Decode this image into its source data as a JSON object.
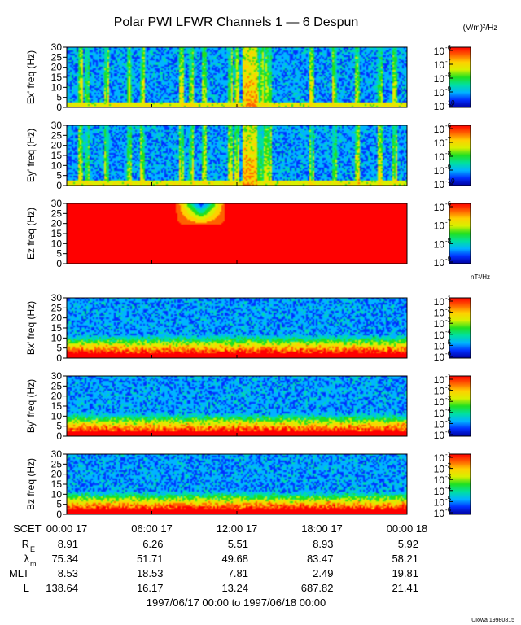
{
  "title": "Polar PWI LFWR Channels 1 — 6 Despun",
  "units": {
    "electric": "(V/m)²/Hz",
    "magnetic": "nT²/Hz"
  },
  "footer": {
    "range": "1997/06/17 00:00 to 1997/06/18 00:00",
    "credit": "UIowa 19980815"
  },
  "time_axis": {
    "label": "SCET",
    "ticks": [
      "00:00 17",
      "06:00 17",
      "12:00 17",
      "18:00 17",
      "00:00 18"
    ],
    "rows": [
      {
        "label": "R",
        "sub": "E",
        "values": [
          "8.91",
          "6.26",
          "5.51",
          "8.93",
          "5.92"
        ]
      },
      {
        "label": "λ",
        "sub": "m",
        "values": [
          "75.34",
          "51.71",
          "49.68",
          "83.47",
          "58.21"
        ]
      },
      {
        "label": "MLT",
        "sub": "",
        "values": [
          "8.53",
          "18.53",
          "7.81",
          "2.49",
          "19.81"
        ]
      },
      {
        "label": "L",
        "sub": "",
        "values": [
          "138.64",
          "16.17",
          "13.24",
          "687.82",
          "21.41"
        ]
      }
    ]
  },
  "colors": {
    "scale": [
      "#0000a0",
      "#0030ff",
      "#00b4ff",
      "#00e0a0",
      "#20e020",
      "#d8f000",
      "#ffd000",
      "#ff6000",
      "#ff0000"
    ]
  },
  "chart_data": [
    {
      "type": "heatmap",
      "channel": "Ex'",
      "ylabel": "Ex' freq (Hz)",
      "ylim": [
        0,
        30
      ],
      "yticks": [
        "0",
        "5",
        "10",
        "15",
        "20",
        "25",
        "30"
      ],
      "colorbar_ticks": [
        {
          "base": "10",
          "exp": "-6"
        },
        {
          "base": "10",
          "exp": "-7"
        },
        {
          "base": "10",
          "exp": "-8"
        },
        {
          "base": "10",
          "exp": "-9"
        },
        {
          "base": "10",
          "exp": "-10"
        }
      ]
    },
    {
      "type": "heatmap",
      "channel": "Ey'",
      "ylabel": "Ey' freq (Hz)",
      "ylim": [
        0,
        30
      ],
      "yticks": [
        "0",
        "5",
        "10",
        "15",
        "20",
        "25",
        "30"
      ],
      "colorbar_ticks": [
        {
          "base": "10",
          "exp": "-6"
        },
        {
          "base": "10",
          "exp": "-7"
        },
        {
          "base": "10",
          "exp": "-8"
        },
        {
          "base": "10",
          "exp": "-9"
        },
        {
          "base": "10",
          "exp": "-10"
        }
      ]
    },
    {
      "type": "heatmap",
      "channel": "Ez",
      "ylabel": "Ez freq (Hz)",
      "ylim": [
        0,
        30
      ],
      "yticks": [
        "0",
        "5",
        "10",
        "15",
        "20",
        "25",
        "30"
      ],
      "colorbar_ticks": [
        {
          "base": "10",
          "exp": "-6"
        },
        {
          "base": "10",
          "exp": "-7"
        },
        {
          "base": "10",
          "exp": "-8"
        },
        {
          "base": "10",
          "exp": "-9"
        }
      ]
    },
    {
      "type": "heatmap",
      "channel": "Bx'",
      "ylabel": "Bx' freq (Hz)",
      "ylim": [
        0,
        30
      ],
      "yticks": [
        "0",
        "5",
        "10",
        "15",
        "20",
        "25",
        "30"
      ],
      "colorbar_ticks": [
        {
          "base": "10",
          "exp": "-1"
        },
        {
          "base": "10",
          "exp": "-2"
        },
        {
          "base": "10",
          "exp": "-3"
        },
        {
          "base": "10",
          "exp": "-4"
        },
        {
          "base": "10",
          "exp": "-5"
        },
        {
          "base": "10",
          "exp": "-6"
        }
      ]
    },
    {
      "type": "heatmap",
      "channel": "By'",
      "ylabel": "By' freq (Hz)",
      "ylim": [
        0,
        30
      ],
      "yticks": [
        "0",
        "5",
        "10",
        "15",
        "20",
        "25",
        "30"
      ],
      "colorbar_ticks": [
        {
          "base": "10",
          "exp": "-1"
        },
        {
          "base": "10",
          "exp": "-2"
        },
        {
          "base": "10",
          "exp": "-3"
        },
        {
          "base": "10",
          "exp": "-4"
        },
        {
          "base": "10",
          "exp": "-5"
        },
        {
          "base": "10",
          "exp": "-6"
        }
      ]
    },
    {
      "type": "heatmap",
      "channel": "Bz",
      "ylabel": "Bz freq (Hz)",
      "ylim": [
        0,
        30
      ],
      "yticks": [
        "0",
        "5",
        "10",
        "15",
        "20",
        "25",
        "30"
      ],
      "colorbar_ticks": [
        {
          "base": "10",
          "exp": "-1"
        },
        {
          "base": "10",
          "exp": "-2"
        },
        {
          "base": "10",
          "exp": "-3"
        },
        {
          "base": "10",
          "exp": "-4"
        },
        {
          "base": "10",
          "exp": "-5"
        },
        {
          "base": "10",
          "exp": "-6"
        }
      ]
    }
  ]
}
